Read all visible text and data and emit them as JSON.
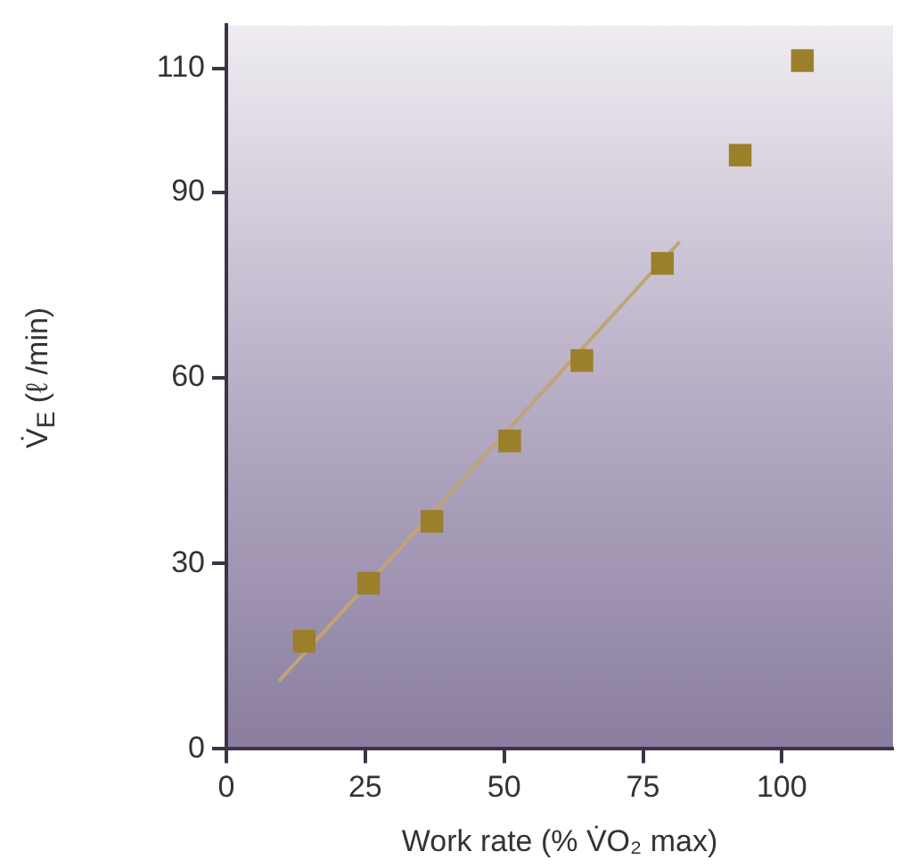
{
  "chart_data": {
    "type": "scatter",
    "xlabel": "Work rate (% V̇O₂ max)",
    "ylabel": "V̇$_{E}$ (ℓ /min)",
    "xlim": [
      0,
      120
    ],
    "ylim": [
      0,
      117
    ],
    "xticks": [
      0,
      25,
      50,
      75,
      100
    ],
    "yticks": [
      0,
      30,
      60,
      90,
      110
    ],
    "marker": "square",
    "legend": false,
    "series": [
      {
        "type": "line",
        "color": "#bfa476",
        "marker": "none",
        "x": [
          9.5,
          81.6
        ],
        "values": [
          11,
          82
        ]
      },
      {
        "color": "#9b7f2a",
        "x": [
          14,
          25.6,
          37,
          51,
          64,
          78.5,
          92.5,
          103.7
        ],
        "values": [
          17.4,
          26.8,
          36.8,
          49.8,
          62.8,
          78.5,
          96,
          111.3
        ]
      }
    ]
  }
}
